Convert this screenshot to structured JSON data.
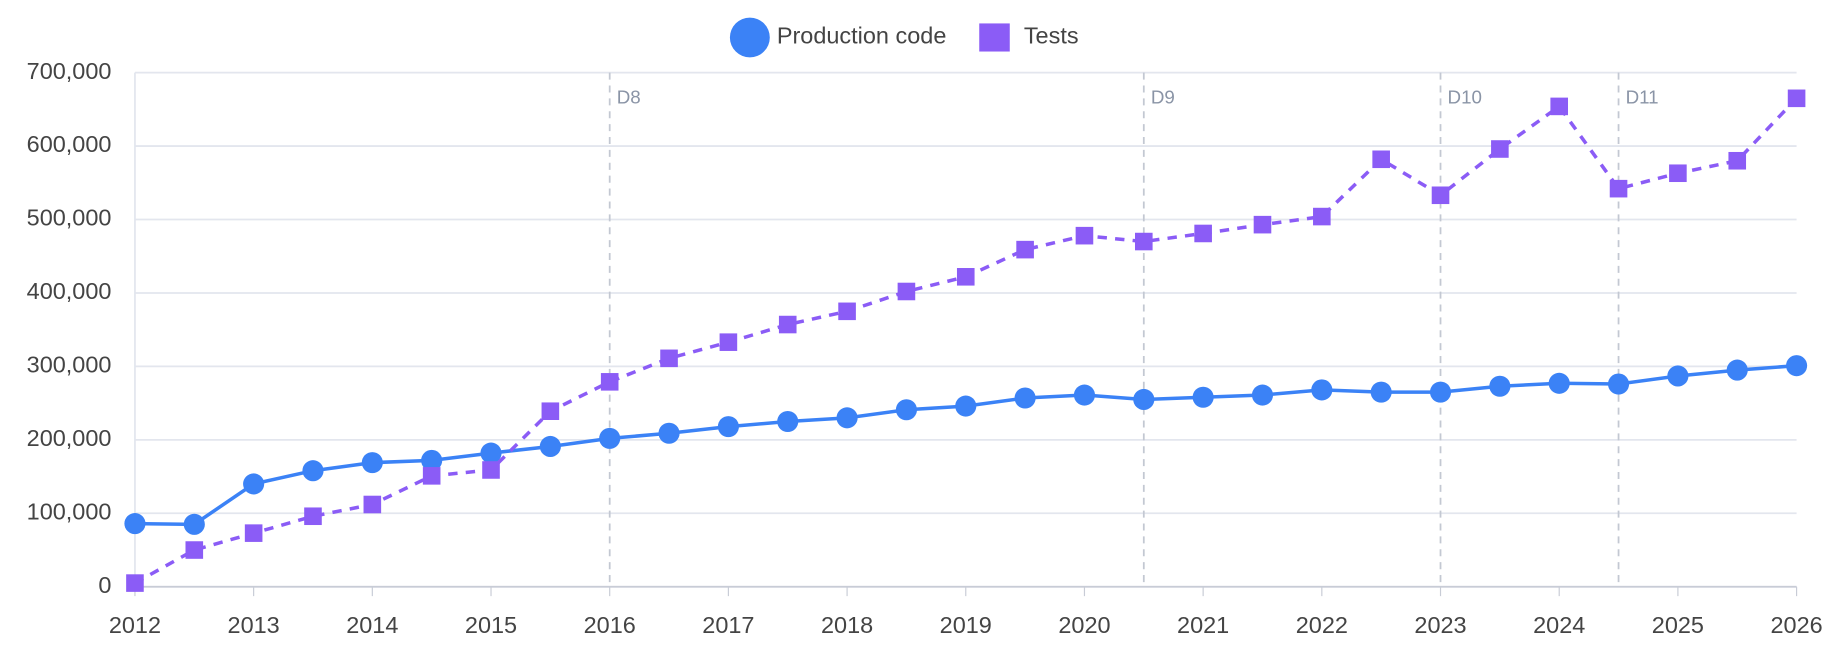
{
  "chart_data": {
    "type": "line",
    "x": [
      2012,
      2012.5,
      2013,
      2013.5,
      2014,
      2014.5,
      2015,
      2015.5,
      2016,
      2016.5,
      2017,
      2017.5,
      2018,
      2018.5,
      2019,
      2019.5,
      2020,
      2020.5,
      2021,
      2021.5,
      2022,
      2022.5,
      2023,
      2023.5,
      2024,
      2024.5,
      2025,
      2025.5,
      2026
    ],
    "series": [
      {
        "name": "Production code",
        "color": "#3b82f6",
        "marker": "circle",
        "dashed": false,
        "values": [
          86000,
          85000,
          140000,
          158000,
          169000,
          172000,
          182000,
          191000,
          202000,
          209000,
          218000,
          225000,
          230000,
          241000,
          246000,
          257000,
          261000,
          255000,
          258000,
          261000,
          268000,
          265000,
          265000,
          273000,
          277000,
          276000,
          287000,
          295000,
          301000
        ]
      },
      {
        "name": "Tests",
        "color": "#8b5cf6",
        "marker": "square",
        "dashed": true,
        "values": [
          5000,
          50000,
          73000,
          96000,
          112000,
          151000,
          159000,
          239000,
          279000,
          311000,
          333000,
          357000,
          375000,
          402000,
          422000,
          459000,
          478000,
          470000,
          481000,
          493000,
          504000,
          582000,
          533000,
          596000,
          654000,
          542000,
          563000,
          580000,
          665000
        ]
      }
    ],
    "xlim": [
      2012,
      2026
    ],
    "xticks": [
      2012,
      2013,
      2014,
      2015,
      2016,
      2017,
      2018,
      2019,
      2020,
      2021,
      2022,
      2023,
      2024,
      2025,
      2026
    ],
    "ylim": [
      0,
      700000
    ],
    "yticks": [
      0,
      {
        "value": 100000,
        "label": "100,000"
      },
      {
        "value": 200000,
        "label": "200,000"
      },
      {
        "value": 300000,
        "label": "300,000"
      },
      {
        "value": 400000,
        "label": "400,000"
      },
      {
        "value": 500000,
        "label": "500,000"
      },
      {
        "value": 600000,
        "label": "600,000"
      },
      {
        "value": 700000,
        "label": "700,000"
      }
    ],
    "grid": true,
    "legend": "top",
    "annotations": [
      {
        "x": 2016,
        "label": "D8"
      },
      {
        "x": 2020.5,
        "label": "D9"
      },
      {
        "x": 2023,
        "label": "D10"
      },
      {
        "x": 2024.5,
        "label": "D11"
      }
    ]
  }
}
